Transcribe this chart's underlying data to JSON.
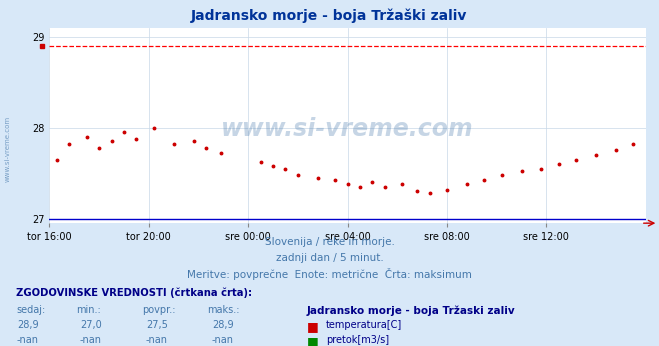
{
  "title": "Jadransko morje - boja Tržaški zaliv",
  "title_color": "#003399",
  "background_color": "#d8e8f8",
  "plot_bg_color": "#ffffff",
  "grid_color": "#c8d8e8",
  "yticks": [
    27,
    28,
    29
  ],
  "ylim": [
    26.95,
    29.1
  ],
  "xlim": [
    0,
    24
  ],
  "x_tick_labels": [
    "tor 16:00",
    "tor 20:00",
    "sre 00:00",
    "sre 04:00",
    "sre 08:00",
    "sre 12:00"
  ],
  "x_tick_positions": [
    0,
    4,
    8,
    12,
    16,
    20
  ],
  "dashed_line_y": 28.9,
  "dashed_line_color": "#ff0000",
  "solid_line_y": 27.0,
  "solid_line_color": "#0000cc",
  "watermark_text": "www.si-vreme.com",
  "watermark_color": "#4477aa",
  "watermark_alpha": 0.3,
  "sidebar_text": "www.si-vreme.com",
  "sidebar_color": "#4477aa",
  "subtitle1": "Slovenija / reke in morje.",
  "subtitle2": "zadnji dan / 5 minut.",
  "subtitle3": "Meritve: povprečne  Enote: metrične  Črta: maksimum",
  "subtitle_color": "#4477aa",
  "footer_title": "ZGODOVINSKE VREDNOSTI (črtkana črta):",
  "footer_color": "#000088",
  "col_headers": [
    "sedaj:",
    "min.:",
    "povpr.:",
    "maks.:"
  ],
  "col_values_temp": [
    "28,9",
    "27,0",
    "27,5",
    "28,9"
  ],
  "col_values_pretok": [
    "-nan",
    "-nan",
    "-nan",
    "-nan"
  ],
  "legend_title": "Jadransko morje - boja Tržaski zaliv",
  "legend_temp": "temperatura[C]",
  "legend_pretok": "pretok[m3/s]",
  "temp_color": "#cc0000",
  "pretok_color": "#008800",
  "scatter_x": [
    0.3,
    0.8,
    1.5,
    2.0,
    2.5,
    3.0,
    3.5,
    4.2,
    5.0,
    5.8,
    6.3,
    6.9,
    8.5,
    9.0,
    9.5,
    10.0,
    10.8,
    11.5,
    12.0,
    12.5,
    13.0,
    13.5,
    14.2,
    14.8,
    15.3,
    16.0,
    16.8,
    17.5,
    18.2,
    19.0,
    19.8,
    20.5,
    21.2,
    22.0,
    22.8,
    23.5
  ],
  "scatter_y": [
    27.65,
    27.82,
    27.9,
    27.78,
    27.85,
    27.95,
    27.88,
    28.0,
    27.82,
    27.85,
    27.78,
    27.72,
    27.62,
    27.58,
    27.55,
    27.48,
    27.45,
    27.42,
    27.38,
    27.35,
    27.4,
    27.35,
    27.38,
    27.3,
    27.28,
    27.32,
    27.38,
    27.42,
    27.48,
    27.52,
    27.55,
    27.6,
    27.65,
    27.7,
    27.75,
    27.82
  ]
}
